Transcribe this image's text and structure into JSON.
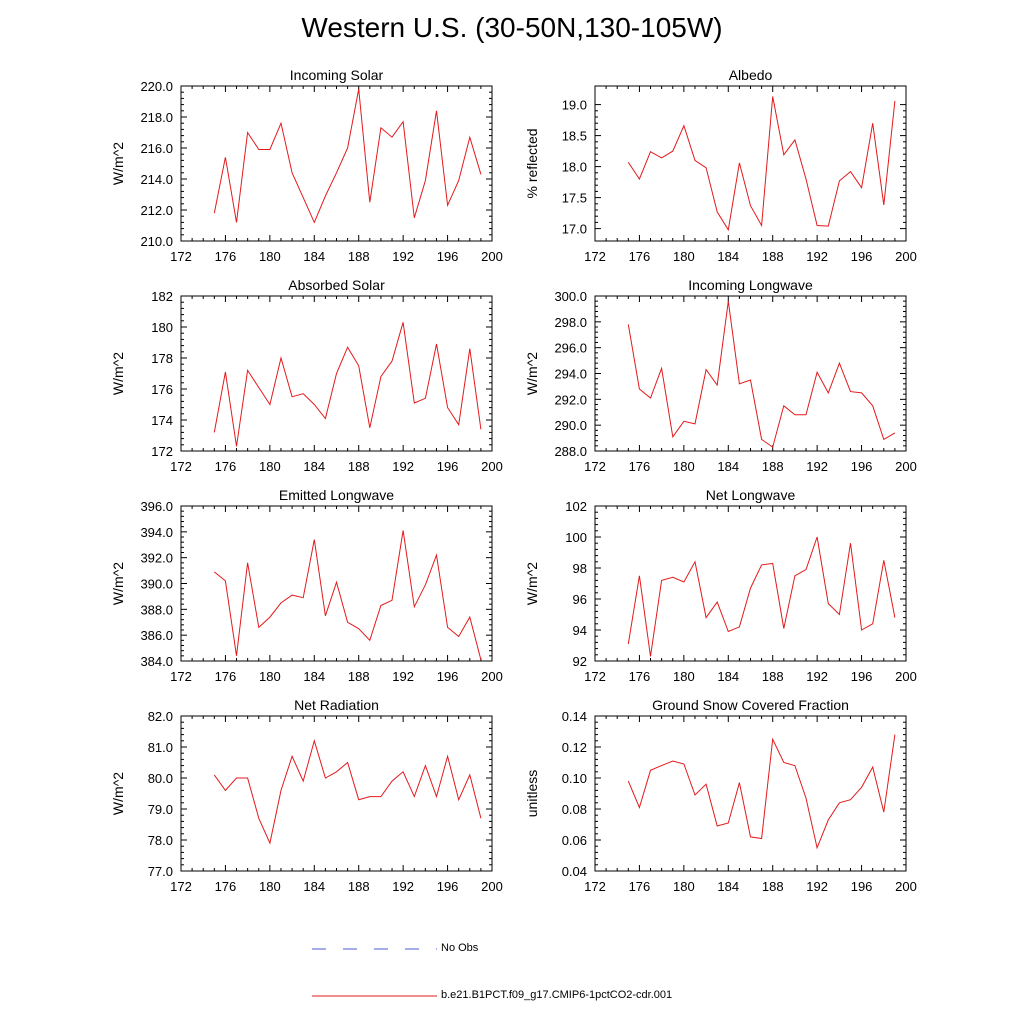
{
  "title": "Western U.S. (30-50N,130-105W)",
  "legend": {
    "obs_label": "No Obs",
    "model_label": "b.e21.B1PCT.f09_g17.CMIP6-1pctCO2-cdr.001",
    "obs_color": "#4a5bd6",
    "model_color": "#e31a1c"
  },
  "chart_data": [
    {
      "type": "line",
      "title": "Incoming Solar",
      "ylabel": "W/m^2",
      "xlim": [
        172,
        200
      ],
      "xticks": [
        172,
        176,
        180,
        184,
        188,
        192,
        196,
        200
      ],
      "ylim": [
        210,
        220
      ],
      "yticks": [
        210,
        212,
        214,
        216,
        218,
        220
      ],
      "ytick_decimals": 1,
      "series": [
        {
          "name": "b.e21.B1PCT.f09_g17.CMIP6-1pctCO2-cdr.001",
          "x": [
            175,
            176,
            177,
            178,
            179,
            180,
            181,
            182,
            183,
            184,
            185,
            186,
            187,
            188,
            189,
            190,
            191,
            192,
            193,
            194,
            195,
            196,
            197,
            198,
            199
          ],
          "y": [
            211.8,
            215.4,
            211.2,
            217.0,
            215.9,
            215.9,
            217.6,
            214.4,
            212.8,
            211.2,
            212.9,
            214.4,
            216.0,
            219.8,
            212.5,
            217.3,
            216.7,
            217.7,
            211.5,
            213.9,
            218.4,
            212.3,
            213.9,
            216.7,
            214.3
          ]
        }
      ]
    },
    {
      "type": "line",
      "title": "Albedo",
      "ylabel": "% reflected",
      "xlim": [
        172,
        200
      ],
      "xticks": [
        172,
        176,
        180,
        184,
        188,
        192,
        196,
        200
      ],
      "ylim": [
        16.8,
        19.3
      ],
      "yticks": [
        17.0,
        17.5,
        18.0,
        18.5,
        19.0
      ],
      "ytick_decimals": 1,
      "series": [
        {
          "name": "b.e21.B1PCT.f09_g17.CMIP6-1pctCO2-cdr.001",
          "x": [
            175,
            176,
            177,
            178,
            179,
            180,
            181,
            182,
            183,
            184,
            185,
            186,
            187,
            188,
            189,
            190,
            191,
            192,
            193,
            194,
            195,
            196,
            197,
            198,
            199
          ],
          "y": [
            18.07,
            17.8,
            18.24,
            18.14,
            18.25,
            18.66,
            18.1,
            17.98,
            17.27,
            16.98,
            18.06,
            17.37,
            17.05,
            19.13,
            18.19,
            18.43,
            17.8,
            17.05,
            17.04,
            17.77,
            17.92,
            17.66,
            18.7,
            17.38,
            19.06
          ]
        }
      ]
    },
    {
      "type": "line",
      "title": "Absorbed Solar",
      "ylabel": "W/m^2",
      "xlim": [
        172,
        200
      ],
      "xticks": [
        172,
        176,
        180,
        184,
        188,
        192,
        196,
        200
      ],
      "ylim": [
        172,
        182
      ],
      "yticks": [
        172,
        174,
        176,
        178,
        180,
        182
      ],
      "ytick_decimals": 0,
      "series": [
        {
          "name": "b.e21.B1PCT.f09_g17.CMIP6-1pctCO2-cdr.001",
          "x": [
            175,
            176,
            177,
            178,
            179,
            180,
            181,
            182,
            183,
            184,
            185,
            186,
            187,
            188,
            189,
            190,
            191,
            192,
            193,
            194,
            195,
            196,
            197,
            198,
            199
          ],
          "y": [
            173.2,
            177.1,
            172.3,
            177.2,
            176.1,
            175.0,
            178.0,
            175.5,
            175.7,
            175.0,
            174.1,
            177.0,
            178.7,
            177.5,
            173.5,
            176.8,
            177.8,
            180.3,
            175.1,
            175.4,
            178.9,
            174.8,
            173.7,
            178.6,
            173.4
          ]
        }
      ]
    },
    {
      "type": "line",
      "title": "Incoming Longwave",
      "ylabel": "W/m^2",
      "xlim": [
        172,
        200
      ],
      "xticks": [
        172,
        176,
        180,
        184,
        188,
        192,
        196,
        200
      ],
      "ylim": [
        288,
        300
      ],
      "yticks": [
        288,
        290,
        292,
        294,
        296,
        298,
        300
      ],
      "ytick_decimals": 1,
      "series": [
        {
          "name": "b.e21.B1PCT.f09_g17.CMIP6-1pctCO2-cdr.001",
          "x": [
            175,
            176,
            177,
            178,
            179,
            180,
            181,
            182,
            183,
            184,
            185,
            186,
            187,
            188,
            189,
            190,
            191,
            192,
            193,
            194,
            195,
            196,
            197,
            198,
            199
          ],
          "y": [
            297.8,
            292.8,
            292.1,
            294.4,
            289.1,
            290.3,
            290.1,
            294.3,
            293.1,
            299.6,
            293.2,
            293.5,
            288.9,
            288.3,
            291.5,
            290.8,
            290.8,
            294.1,
            292.5,
            294.8,
            292.6,
            292.5,
            291.5,
            288.9,
            289.4
          ]
        }
      ]
    },
    {
      "type": "line",
      "title": "Emitted Longwave",
      "ylabel": "W/m^2",
      "xlim": [
        172,
        200
      ],
      "xticks": [
        172,
        176,
        180,
        184,
        188,
        192,
        196,
        200
      ],
      "ylim": [
        384,
        396
      ],
      "yticks": [
        384,
        386,
        388,
        390,
        392,
        394,
        396
      ],
      "ytick_decimals": 1,
      "series": [
        {
          "name": "b.e21.B1PCT.f09_g17.CMIP6-1pctCO2-cdr.001",
          "x": [
            175,
            176,
            177,
            178,
            179,
            180,
            181,
            182,
            183,
            184,
            185,
            186,
            187,
            188,
            189,
            190,
            191,
            192,
            193,
            194,
            195,
            196,
            197,
            198,
            199
          ],
          "y": [
            390.9,
            390.2,
            384.4,
            391.6,
            386.6,
            387.4,
            388.5,
            389.1,
            388.9,
            393.4,
            387.5,
            390.1,
            387.0,
            386.5,
            385.6,
            388.3,
            388.7,
            394.1,
            388.2,
            389.9,
            392.2,
            386.6,
            385.9,
            387.4,
            384.1
          ]
        }
      ]
    },
    {
      "type": "line",
      "title": "Net Longwave",
      "ylabel": "W/m^2",
      "xlim": [
        172,
        200
      ],
      "xticks": [
        172,
        176,
        180,
        184,
        188,
        192,
        196,
        200
      ],
      "ylim": [
        92,
        102
      ],
      "yticks": [
        92,
        94,
        96,
        98,
        100,
        102
      ],
      "ytick_decimals": 0,
      "series": [
        {
          "name": "b.e21.B1PCT.f09_g17.CMIP6-1pctCO2-cdr.001",
          "x": [
            175,
            176,
            177,
            178,
            179,
            180,
            181,
            182,
            183,
            184,
            185,
            186,
            187,
            188,
            189,
            190,
            191,
            192,
            193,
            194,
            195,
            196,
            197,
            198,
            199
          ],
          "y": [
            93.1,
            97.5,
            92.3,
            97.2,
            97.4,
            97.1,
            98.4,
            94.8,
            95.8,
            93.9,
            94.2,
            96.7,
            98.2,
            98.3,
            94.1,
            97.5,
            97.9,
            100.0,
            95.7,
            95.0,
            99.6,
            94.0,
            94.4,
            98.5,
            94.8
          ]
        }
      ]
    },
    {
      "type": "line",
      "title": "Net Radiation",
      "ylabel": "W/m^2",
      "xlim": [
        172,
        200
      ],
      "xticks": [
        172,
        176,
        180,
        184,
        188,
        192,
        196,
        200
      ],
      "ylim": [
        77,
        82
      ],
      "yticks": [
        77,
        78,
        79,
        80,
        81,
        82
      ],
      "ytick_decimals": 1,
      "series": [
        {
          "name": "b.e21.B1PCT.f09_g17.CMIP6-1pctCO2-cdr.001",
          "x": [
            175,
            176,
            177,
            178,
            179,
            180,
            181,
            182,
            183,
            184,
            185,
            186,
            187,
            188,
            189,
            190,
            191,
            192,
            193,
            194,
            195,
            196,
            197,
            198,
            199
          ],
          "y": [
            80.1,
            79.6,
            80.0,
            80.0,
            78.7,
            77.9,
            79.6,
            80.7,
            79.9,
            81.2,
            80.0,
            80.2,
            80.5,
            79.3,
            79.4,
            79.4,
            79.9,
            80.2,
            79.4,
            80.4,
            79.4,
            80.7,
            79.3,
            80.1,
            78.7
          ]
        }
      ]
    },
    {
      "type": "line",
      "title": "Ground Snow Covered Fraction",
      "ylabel": "unitless",
      "xlim": [
        172,
        200
      ],
      "xticks": [
        172,
        176,
        180,
        184,
        188,
        192,
        196,
        200
      ],
      "ylim": [
        0.04,
        0.14
      ],
      "yticks": [
        0.04,
        0.06,
        0.08,
        0.1,
        0.12,
        0.14
      ],
      "ytick_decimals": 2,
      "series": [
        {
          "name": "b.e21.B1PCT.f09_g17.CMIP6-1pctCO2-cdr.001",
          "x": [
            175,
            176,
            177,
            178,
            179,
            180,
            181,
            182,
            183,
            184,
            185,
            186,
            187,
            188,
            189,
            190,
            191,
            192,
            193,
            194,
            195,
            196,
            197,
            198,
            199
          ],
          "y": [
            0.098,
            0.081,
            0.105,
            0.108,
            0.111,
            0.109,
            0.089,
            0.096,
            0.069,
            0.071,
            0.097,
            0.062,
            0.061,
            0.125,
            0.11,
            0.108,
            0.087,
            0.055,
            0.073,
            0.084,
            0.086,
            0.094,
            0.107,
            0.078,
            0.128
          ]
        }
      ]
    }
  ]
}
